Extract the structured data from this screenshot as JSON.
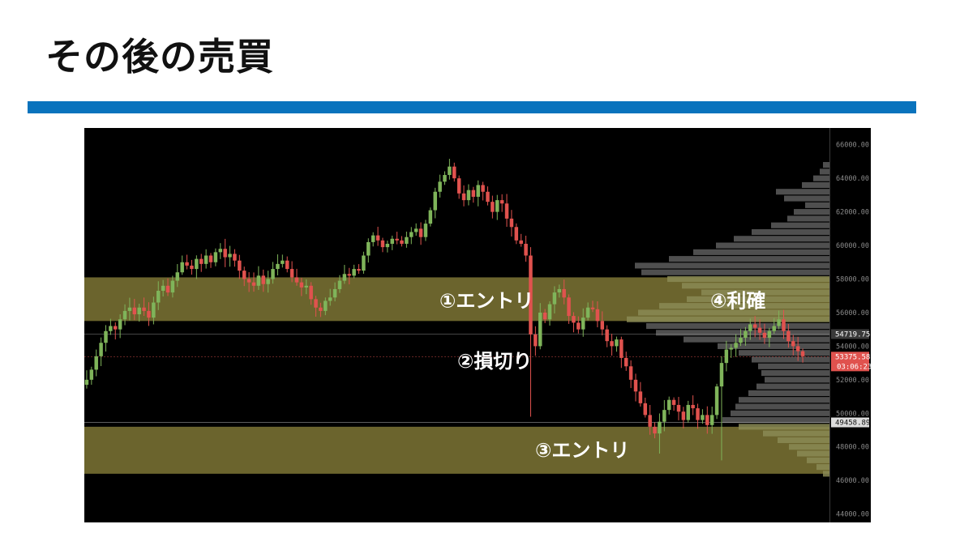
{
  "slide": {
    "title": "その後の売買"
  },
  "chart_data": {
    "type": "candlestick",
    "title": "",
    "xlabel": "",
    "ylabel": "",
    "ylim": [
      43500,
      67000
    ],
    "y_ticks": [
      44000,
      46000,
      48000,
      50000,
      52000,
      54000,
      56000,
      58000,
      60000,
      62000,
      64000,
      66000
    ],
    "y_tick_labels": [
      "44000.00",
      "46000.00",
      "48000.00",
      "50000.00",
      "52000.00",
      "54000.00",
      "56000.00",
      "58000.00",
      "60000.00",
      "62000.00",
      "64000.00",
      "66000.00"
    ],
    "colors": {
      "up": "#7fb45a",
      "down": "#e0524e",
      "zone": "#7a7233",
      "profile": "#707070",
      "profile_low": "#8a8a55"
    },
    "zones": [
      {
        "from": 55500,
        "to": 58100
      },
      {
        "from": 46400,
        "to": 49200
      }
    ],
    "annotations": [
      {
        "label": "①エントリ",
        "price": 56700
      },
      {
        "label": "②損切り",
        "price": 53100
      },
      {
        "label": "③エントリ",
        "price": 47800
      },
      {
        "label": "④利確",
        "price": 56700
      }
    ],
    "price_lines": [
      {
        "price": 54719.75,
        "label": "54719.75",
        "color": "#9a9a9a"
      },
      {
        "price": 53375.58,
        "label": "53375.58",
        "label2": "03:06:23",
        "color": "#e0524e"
      },
      {
        "price": 49458.89,
        "label": "49458.89",
        "color": "#cfcfcf"
      }
    ],
    "closes": [
      52000,
      52600,
      53400,
      54200,
      54900,
      55200,
      55000,
      55600,
      56100,
      56300,
      55900,
      56300,
      56100,
      55700,
      56600,
      57300,
      57600,
      57200,
      57900,
      58400,
      59000,
      58800,
      58600,
      59200,
      58900,
      59400,
      59000,
      59600,
      59800,
      59300,
      59500,
      59100,
      58500,
      58000,
      57800,
      57600,
      58200,
      57700,
      58000,
      58600,
      58900,
      59100,
      58600,
      58100,
      57800,
      57500,
      57600,
      56800,
      56300,
      56100,
      56700,
      56900,
      57400,
      57900,
      58300,
      58200,
      58600,
      58500,
      59400,
      60200,
      60600,
      60300,
      59900,
      60100,
      60400,
      60300,
      60100,
      60500,
      60800,
      61000,
      60500,
      61300,
      62100,
      63200,
      63800,
      64200,
      64700,
      64000,
      63100,
      62700,
      63300,
      62900,
      63600,
      63200,
      62600,
      62000,
      62700,
      62500,
      61600,
      61100,
      60300,
      60100,
      59400,
      54700,
      54000,
      56000,
      55600,
      56500,
      57200,
      57400,
      56900,
      55800,
      55400,
      55000,
      55700,
      56300,
      56200,
      55500,
      55000,
      54300,
      54000,
      54400,
      53300,
      52800,
      52000,
      51300,
      50600,
      49900,
      49200,
      48800,
      49500,
      50200,
      50800,
      50500,
      50100,
      49600,
      50500,
      50300,
      49600,
      49900,
      49300,
      49900,
      51600,
      53000,
      53800,
      53900,
      54200,
      54500,
      54900,
      55300,
      55100,
      54800,
      54500,
      54900,
      55200,
      55600,
      54900,
      54300,
      54000,
      53700,
      53400
    ],
    "volume_profile": [
      {
        "price": 64800,
        "width": 8
      },
      {
        "price": 64400,
        "width": 12
      },
      {
        "price": 64000,
        "width": 20
      },
      {
        "price": 63600,
        "width": 34
      },
      {
        "price": 63200,
        "width": 66
      },
      {
        "price": 62800,
        "width": 56
      },
      {
        "price": 62400,
        "width": 30
      },
      {
        "price": 62000,
        "width": 44
      },
      {
        "price": 61600,
        "width": 52
      },
      {
        "price": 61200,
        "width": 72
      },
      {
        "price": 60800,
        "width": 96
      },
      {
        "price": 60400,
        "width": 118
      },
      {
        "price": 60000,
        "width": 140
      },
      {
        "price": 59600,
        "width": 168
      },
      {
        "price": 59200,
        "width": 198
      },
      {
        "price": 58800,
        "width": 240
      },
      {
        "price": 58400,
        "width": 232
      },
      {
        "price": 58000,
        "width": 200
      },
      {
        "price": 57600,
        "width": 182
      },
      {
        "price": 57200,
        "width": 158
      },
      {
        "price": 56800,
        "width": 176
      },
      {
        "price": 56400,
        "width": 210
      },
      {
        "price": 56000,
        "width": 236
      },
      {
        "price": 55600,
        "width": 250
      },
      {
        "price": 55200,
        "width": 226
      },
      {
        "price": 54800,
        "width": 214
      },
      {
        "price": 54400,
        "width": 180
      },
      {
        "price": 54000,
        "width": 138
      },
      {
        "price": 53600,
        "width": 112
      },
      {
        "price": 53200,
        "width": 96
      },
      {
        "price": 52800,
        "width": 88
      },
      {
        "price": 52400,
        "width": 84
      },
      {
        "price": 52000,
        "width": 80
      },
      {
        "price": 51600,
        "width": 90
      },
      {
        "price": 51200,
        "width": 100
      },
      {
        "price": 50800,
        "width": 112
      },
      {
        "price": 50400,
        "width": 116
      },
      {
        "price": 50000,
        "width": 122
      },
      {
        "price": 49600,
        "width": 132
      },
      {
        "price": 49200,
        "width": 112
      },
      {
        "price": 48800,
        "width": 82
      },
      {
        "price": 48400,
        "width": 64
      },
      {
        "price": 48000,
        "width": 50
      },
      {
        "price": 47600,
        "width": 40
      },
      {
        "price": 47200,
        "width": 28
      },
      {
        "price": 46800,
        "width": 16
      },
      {
        "price": 46400,
        "width": 8
      }
    ]
  }
}
